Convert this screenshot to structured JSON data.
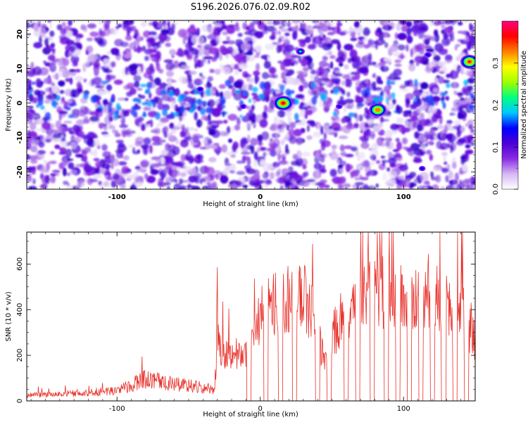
{
  "title": "S196.2026.076.02.09.R02",
  "chart_data": [
    {
      "type": "heatmap",
      "xlabel": "Height of straight line (km)",
      "ylabel": "Frequency (Hz)",
      "xlim": [
        -163,
        150
      ],
      "ylim": [
        -25,
        24
      ],
      "x_ticks": [
        -100,
        0,
        100
      ],
      "y_ticks": [
        -20,
        -10,
        0,
        10,
        20
      ],
      "colorbar": {
        "label": "Normalized spectral amplitude",
        "range": [
          0.0,
          0.4
        ],
        "ticks": [
          0.0,
          0.1,
          0.2,
          0.3
        ],
        "colors": [
          "#ffffff",
          "#d6b8f4",
          "#8a2be2",
          "#4b00d6",
          "#0000ff",
          "#00c8ff",
          "#00ff80",
          "#a0ff00",
          "#ffff00",
          "#ff8000",
          "#ff0000",
          "#ff0080"
        ]
      },
      "hot_spots": [
        {
          "x": 16,
          "y": 0,
          "value": 0.36
        },
        {
          "x": 82,
          "y": -2,
          "value": 0.33
        },
        {
          "x": 146,
          "y": 12,
          "value": 0.34
        },
        {
          "x": 28,
          "y": 15,
          "value": 0.16
        },
        {
          "x": -42,
          "y": 4,
          "value": 0.13
        },
        {
          "x": 113,
          "y": -19,
          "value": 0.12
        },
        {
          "x": 117,
          "y": 14,
          "value": 0.13
        },
        {
          "x": -12,
          "y": -1,
          "value": 0.12
        },
        {
          "x": 55,
          "y": -1,
          "value": 0.12
        }
      ]
    },
    {
      "type": "line",
      "xlabel": "Height of straight line (km)",
      "ylabel": "SNR (10 * v/v)",
      "xlim": [
        -163,
        150
      ],
      "ylim": [
        0,
        740
      ],
      "x_ticks": [
        -100,
        0,
        100
      ],
      "y_ticks": [
        0,
        200,
        400,
        600
      ],
      "color": "#e8302a",
      "series": [
        {
          "x": [
            -163,
            -140,
            -120,
            -100,
            -90,
            -80,
            -70,
            -60,
            -50,
            -40,
            -32,
            -30,
            -20,
            -10,
            0,
            10,
            20,
            30,
            40,
            45,
            50,
            60,
            70,
            80,
            90,
            100,
            110,
            120,
            130,
            140,
            150
          ],
          "values": [
            25,
            30,
            38,
            45,
            70,
            95,
            90,
            75,
            68,
            58,
            50,
            230,
            200,
            215,
            370,
            420,
            440,
            470,
            320,
            150,
            280,
            400,
            460,
            490,
            470,
            450,
            440,
            440,
            440,
            400,
            250
          ],
          "dropouts_to_zero": [
            -8,
            4,
            14,
            24,
            40,
            48,
            60,
            68,
            78,
            88,
            96,
            104,
            112,
            120,
            128,
            136,
            144
          ]
        }
      ]
    }
  ]
}
